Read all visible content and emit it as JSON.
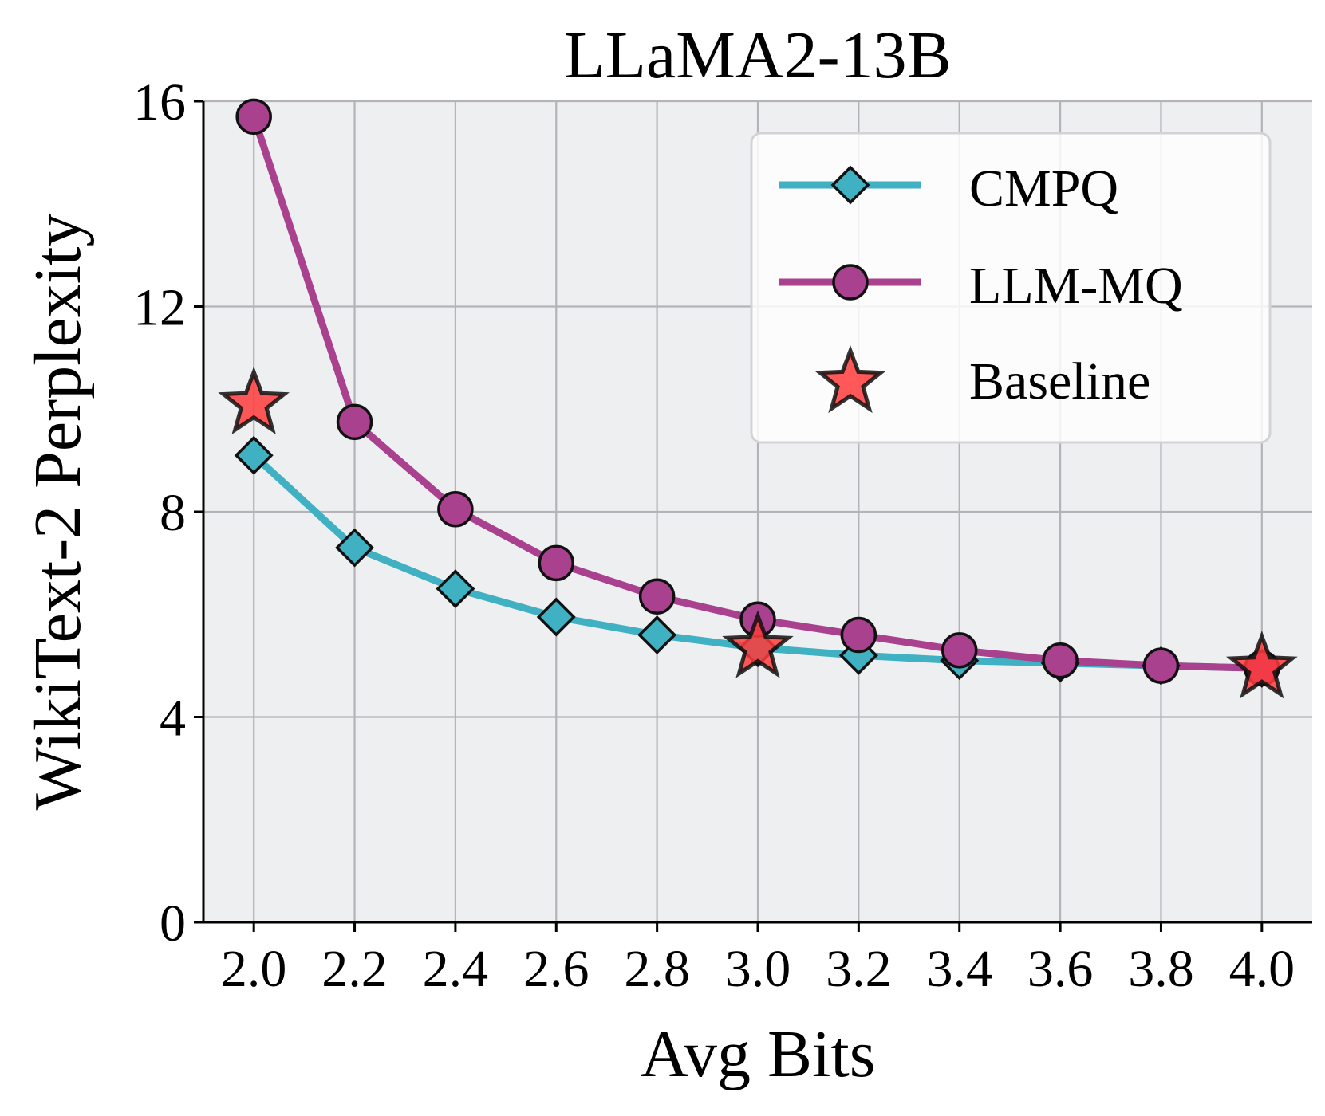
{
  "chart_data": {
    "type": "line",
    "title": "LLaMA2-13B",
    "xlabel": "Avg Bits",
    "ylabel": "WikiText-2 Perplexity",
    "x": [
      2.0,
      2.2,
      2.4,
      2.6,
      2.8,
      3.0,
      3.2,
      3.4,
      3.6,
      3.8,
      4.0
    ],
    "x_tick_labels": [
      "2.0",
      "2.2",
      "2.4",
      "2.6",
      "2.8",
      "3.0",
      "3.2",
      "3.4",
      "3.6",
      "3.8",
      "4.0"
    ],
    "y_ticks": [
      0,
      4,
      8,
      12,
      16
    ],
    "y_tick_labels": [
      "0",
      "4",
      "8",
      "12",
      "16"
    ],
    "xlim": [
      1.9,
      4.1
    ],
    "ylim": [
      0,
      16
    ],
    "grid": true,
    "legend_position": "top-right",
    "series": [
      {
        "name": "CMPQ",
        "marker": "diamond",
        "color": "#3fb1c2",
        "x": [
          2.0,
          2.2,
          2.4,
          2.6,
          2.8,
          3.0,
          3.2,
          3.4,
          3.6,
          3.8,
          4.0
        ],
        "values": [
          9.1,
          7.3,
          6.5,
          5.95,
          5.6,
          5.35,
          5.2,
          5.1,
          5.05,
          5.0,
          4.95
        ]
      },
      {
        "name": "LLM-MQ",
        "marker": "circle",
        "color": "#a9418e",
        "x": [
          2.0,
          2.2,
          2.4,
          2.6,
          2.8,
          3.0,
          3.2,
          3.4,
          3.6,
          3.8,
          4.0
        ],
        "values": [
          15.7,
          9.75,
          8.05,
          7.0,
          6.35,
          5.9,
          5.6,
          5.3,
          5.1,
          5.0,
          4.95
        ]
      },
      {
        "name": "Baseline",
        "marker": "star",
        "color": "#ff3b3b",
        "x": [
          2.0,
          3.0,
          4.0
        ],
        "values": [
          10.1,
          5.35,
          4.95
        ]
      }
    ]
  }
}
